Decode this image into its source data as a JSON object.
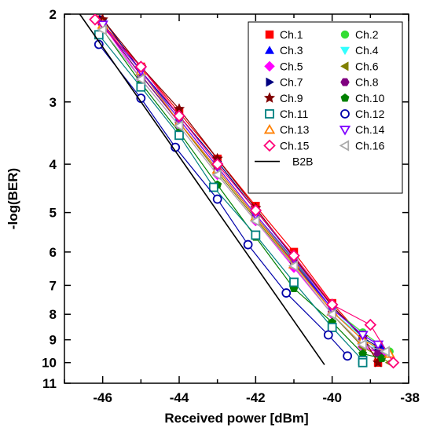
{
  "chart_data": {
    "type": "line",
    "title": "",
    "xlabel": "Received power [dBm]",
    "ylabel": "-log(BER)",
    "xlim": [
      -47,
      -38
    ],
    "ylim": [
      2,
      11
    ],
    "y_scale": "log",
    "grid": false,
    "legend_position": "top-right",
    "x_ticks": [
      {
        "value": -46,
        "label": "-46"
      },
      {
        "value": -44,
        "label": "-44"
      },
      {
        "value": -42,
        "label": "-42"
      },
      {
        "value": -40,
        "label": "-40"
      },
      {
        "value": -38,
        "label": "-38"
      }
    ],
    "y_ticks": [
      {
        "value": 2,
        "label": "2"
      },
      {
        "value": 3,
        "label": "3"
      },
      {
        "value": 4,
        "label": "4"
      },
      {
        "value": 5,
        "label": "5"
      },
      {
        "value": 6,
        "label": "6"
      },
      {
        "value": 7,
        "label": "7"
      },
      {
        "value": 8,
        "label": "8"
      },
      {
        "value": 9,
        "label": "9"
      },
      {
        "value": 10,
        "label": "10"
      },
      {
        "value": 11,
        "label": "11"
      }
    ],
    "series": [
      {
        "name": "Ch.1",
        "color": "#ff0000",
        "marker": "square",
        "filled": true,
        "x": [
          -46.1,
          -45.0,
          -44.0,
          -43.0,
          -42.0,
          -41.0,
          -40.0,
          -39.2,
          -38.8
        ],
        "y": [
          2.05,
          2.55,
          3.15,
          3.9,
          4.85,
          6.0,
          7.6,
          8.9,
          10.0
        ]
      },
      {
        "name": "Ch.2",
        "color": "#33dd33",
        "marker": "circle",
        "filled": true,
        "x": [
          -46.0,
          -45.0,
          -44.0,
          -43.0,
          -42.0,
          -41.0,
          -40.0,
          -39.2,
          -38.5
        ],
        "y": [
          2.1,
          2.6,
          3.25,
          4.05,
          5.05,
          6.25,
          7.8,
          8.7,
          9.5
        ]
      },
      {
        "name": "Ch.3",
        "color": "#0000ff",
        "marker": "triangle-up",
        "filled": true,
        "x": [
          -46.0,
          -45.0,
          -44.0,
          -43.0,
          -42.0,
          -41.0,
          -40.0,
          -39.2,
          -38.7
        ],
        "y": [
          2.1,
          2.65,
          3.3,
          4.1,
          5.1,
          6.3,
          7.8,
          8.8,
          9.3
        ]
      },
      {
        "name": "Ch.4",
        "color": "#33ffff",
        "marker": "triangle-down",
        "filled": true,
        "x": [
          -46.0,
          -45.0,
          -44.0,
          -43.0,
          -42.0,
          -41.0,
          -40.0,
          -39.2,
          -38.7
        ],
        "y": [
          2.1,
          2.6,
          3.3,
          4.1,
          5.1,
          6.3,
          7.9,
          8.9,
          9.6
        ]
      },
      {
        "name": "Ch.5",
        "color": "#ff00ff",
        "marker": "diamond",
        "filled": true,
        "x": [
          -46.0,
          -45.0,
          -44.0,
          -43.0,
          -42.0,
          -41.0,
          -40.0,
          -39.2,
          -38.7
        ],
        "y": [
          2.1,
          2.7,
          3.35,
          4.2,
          5.2,
          6.45,
          8.0,
          9.3,
          9.6
        ]
      },
      {
        "name": "Ch.6",
        "color": "#808000",
        "marker": "triangle-left",
        "filled": true,
        "x": [
          -46.0,
          -45.0,
          -44.0,
          -43.0,
          -42.0,
          -41.0,
          -40.0,
          -39.2,
          -38.5
        ],
        "y": [
          2.1,
          2.65,
          3.3,
          4.15,
          5.15,
          6.4,
          8.0,
          9.3,
          10.0
        ]
      },
      {
        "name": "Ch.7",
        "color": "#000080",
        "marker": "triangle-right",
        "filled": true,
        "x": [
          -46.0,
          -45.0,
          -44.0,
          -43.0,
          -42.0,
          -41.0,
          -40.0,
          -39.2,
          -38.8
        ],
        "y": [
          2.05,
          2.6,
          3.2,
          3.95,
          4.95,
          6.15,
          7.7,
          8.9,
          9.3
        ]
      },
      {
        "name": "Ch.8",
        "color": "#800080",
        "marker": "hexagon",
        "filled": true,
        "x": [
          -46.0,
          -45.0,
          -44.0,
          -43.0,
          -42.0,
          -41.0,
          -40.0,
          -39.2,
          -38.8
        ],
        "y": [
          2.1,
          2.65,
          3.3,
          4.1,
          5.1,
          6.3,
          7.9,
          9.0,
          9.6
        ]
      },
      {
        "name": "Ch.9",
        "color": "#800000",
        "marker": "star",
        "filled": true,
        "x": [
          -46.0,
          -45.0,
          -44.0,
          -43.0,
          -42.0,
          -41.0,
          -40.0,
          -39.2,
          -38.8
        ],
        "y": [
          2.05,
          2.55,
          3.1,
          3.9,
          4.9,
          6.15,
          7.7,
          8.9,
          10.0
        ]
      },
      {
        "name": "Ch.10",
        "color": "#008000",
        "marker": "pentagon",
        "filled": true,
        "x": [
          -46.0,
          -45.0,
          -44.0,
          -43.0,
          -42.0,
          -41.0,
          -40.0,
          -39.2,
          -38.7
        ],
        "y": [
          2.15,
          2.75,
          3.45,
          4.4,
          5.6,
          7.1,
          8.3,
          9.6,
          9.8
        ]
      },
      {
        "name": "Ch.11",
        "color": "#008080",
        "marker": "square",
        "filled": false,
        "x": [
          -46.1,
          -45.0,
          -44.0,
          -43.1,
          -42.0,
          -41.0,
          -40.0,
          -39.2,
          -39.2
        ],
        "y": [
          2.2,
          2.8,
          3.5,
          4.45,
          5.55,
          6.9,
          8.5,
          9.9,
          10.0
        ]
      },
      {
        "name": "Ch.12",
        "color": "#0000aa",
        "marker": "circle",
        "filled": false,
        "x": [
          -46.1,
          -45.0,
          -44.1,
          -43.0,
          -42.2,
          -41.2,
          -40.1,
          -39.6
        ],
        "y": [
          2.3,
          2.95,
          3.7,
          4.7,
          5.8,
          7.25,
          8.8,
          9.7
        ]
      },
      {
        "name": "Ch.13",
        "color": "#ff8000",
        "marker": "triangle-up",
        "filled": false,
        "x": [
          -46.0,
          -45.0,
          -44.0,
          -43.0,
          -42.0,
          -41.0,
          -40.0,
          -39.2,
          -38.5
        ],
        "y": [
          2.1,
          2.6,
          3.3,
          4.1,
          5.1,
          6.35,
          7.9,
          9.0,
          9.6
        ]
      },
      {
        "name": "Ch.14",
        "color": "#8000ff",
        "marker": "triangle-down",
        "filled": false,
        "x": [
          -46.0,
          -45.0,
          -44.0,
          -43.0,
          -42.0,
          -41.0,
          -40.0,
          -39.2,
          -38.8
        ],
        "y": [
          2.1,
          2.6,
          3.25,
          4.05,
          5.05,
          6.2,
          7.8,
          8.8,
          9.2
        ]
      },
      {
        "name": "Ch.15",
        "color": "#ff0077",
        "marker": "diamond",
        "filled": false,
        "x": [
          -46.2,
          -45.0,
          -44.0,
          -43.0,
          -42.0,
          -41.0,
          -40.0,
          -39.0,
          -38.4
        ],
        "y": [
          2.05,
          2.55,
          3.2,
          4.0,
          4.95,
          6.1,
          7.65,
          8.4,
          10.0
        ]
      },
      {
        "name": "Ch.16",
        "color": "#aaaaaa",
        "marker": "triangle-left",
        "filled": false,
        "x": [
          -46.0,
          -45.0,
          -44.0,
          -43.0,
          -42.0,
          -41.0,
          -40.0,
          -39.2,
          -38.6
        ],
        "y": [
          2.15,
          2.7,
          3.35,
          4.2,
          5.2,
          6.4,
          8.0,
          9.2,
          9.5
        ]
      },
      {
        "name": "B2B",
        "color": "#000000",
        "marker": "none",
        "filled": false,
        "x": [
          -46.6,
          -40.2
        ],
        "y": [
          2.0,
          10.1
        ]
      }
    ]
  }
}
